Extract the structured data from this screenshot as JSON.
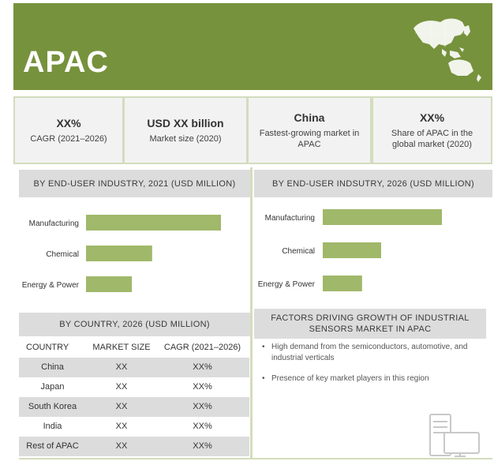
{
  "banner": {
    "title": "APAC",
    "map_icon": "asia-pacific-map-icon"
  },
  "kpis": [
    {
      "value": "XX%",
      "label": "CAGR (2021–2026)"
    },
    {
      "value": "USD XX billion",
      "label": "Market size (2020)"
    },
    {
      "value": "China",
      "label": "Fastest-growing market in APAC"
    },
    {
      "value": "XX%",
      "label": "Share of APAC in the global market (2020)"
    }
  ],
  "sections": {
    "chart_2021_title": "BY END-USER INDUSTRY, 2021 (USD MILLION)",
    "chart_2026_title": "BY END-USER INDSUTRY, 2026 (USD MILLION)",
    "country_title": "BY COUNTRY, 2026 (USD MILLION)",
    "factors_title": "FACTORS DRIVING GROWTH OF INDUSTRIAL SENSORS MARKET IN APAC"
  },
  "chart_data": [
    {
      "type": "bar",
      "orientation": "horizontal",
      "title": "BY END-USER INDUSTRY, 2021 (USD MILLION)",
      "categories": [
        "Manufacturing",
        "Chemical",
        "Energy & Power"
      ],
      "values": [
        100,
        49,
        34
      ],
      "xlim": [
        0,
        100
      ],
      "grid": false,
      "color": "#a0b86a"
    },
    {
      "type": "bar",
      "orientation": "horizontal",
      "title": "BY END-USER INDSUTRY, 2026 (USD MILLION)",
      "categories": [
        "Manufacturing",
        "Chemical",
        "Energy & Power"
      ],
      "values": [
        100,
        49,
        33
      ],
      "xlim": [
        0,
        100
      ],
      "grid": false,
      "color": "#a0b86a"
    }
  ],
  "country_table": {
    "headers": [
      "COUNTRY",
      "MARKET SIZE",
      "CAGR (2021–2026)"
    ],
    "rows": [
      [
        "China",
        "XX",
        "XX%"
      ],
      [
        "Japan",
        "XX",
        "XX%"
      ],
      [
        "South Korea",
        "XX",
        "XX%"
      ],
      [
        "India",
        "XX",
        "XX%"
      ],
      [
        "Rest of APAC",
        "XX",
        "XX%"
      ]
    ]
  },
  "factors": {
    "items": [
      "High demand from the semiconductors, automotive, and industrial verticals",
      "Presence of key market players in this region"
    ],
    "bullet": "•"
  },
  "decor": {
    "corner_icon": "server-monitor-icon"
  },
  "colors": {
    "accent": "#76923c",
    "bar": "#a0b86a",
    "panel": "#d3dcbd",
    "header": "#dcdcdc"
  }
}
